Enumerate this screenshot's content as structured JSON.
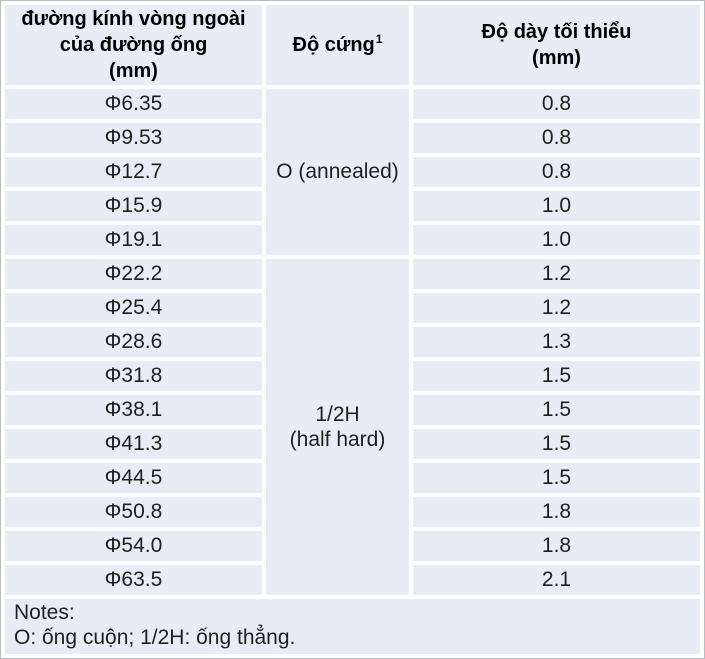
{
  "colors": {
    "cell_bg": "#e9ecf4",
    "separator": "#ffffff",
    "header_text": "#000000",
    "body_text": "#1f1f1f",
    "frame_border": "#b9bcc2"
  },
  "table": {
    "header": {
      "col1": "đường kính vòng ngoài\ncủa đường ống\n(mm)",
      "col2": "Độ cứng",
      "col2_sup": "1",
      "col3": "Độ dày tối thiểu\n(mm)"
    },
    "hardness_groups": [
      {
        "label": "O (annealed)",
        "rows": 5
      },
      {
        "label": "1/2H\n(half hard)",
        "rows": 10
      }
    ],
    "rows": [
      {
        "diameter": "Φ6.35",
        "thickness": "0.8"
      },
      {
        "diameter": "Φ9.53",
        "thickness": "0.8"
      },
      {
        "diameter": "Φ12.7",
        "thickness": "0.8"
      },
      {
        "diameter": "Φ15.9",
        "thickness": "1.0"
      },
      {
        "diameter": "Φ19.1",
        "thickness": "1.0"
      },
      {
        "diameter": "Φ22.2",
        "thickness": "1.2"
      },
      {
        "diameter": "Φ25.4",
        "thickness": "1.2"
      },
      {
        "diameter": "Φ28.6",
        "thickness": "1.3"
      },
      {
        "diameter": "Φ31.8",
        "thickness": "1.5"
      },
      {
        "diameter": "Φ38.1",
        "thickness": "1.5"
      },
      {
        "diameter": "Φ41.3",
        "thickness": "1.5"
      },
      {
        "diameter": "Φ44.5",
        "thickness": "1.5"
      },
      {
        "diameter": "Φ50.8",
        "thickness": "1.8"
      },
      {
        "diameter": "Φ54.0",
        "thickness": "1.8"
      },
      {
        "diameter": "Φ63.5",
        "thickness": "2.1"
      }
    ],
    "notes": {
      "line1": "Notes:",
      "line2": "O: ống cuộn; 1/2H: ống thẳng."
    }
  },
  "chart_data": {
    "type": "table",
    "columns": [
      "đường kính vòng ngoài của đường ống (mm)",
      "Độ cứng¹",
      "Độ dày tối thiểu (mm)"
    ],
    "rows": [
      [
        "Φ6.35",
        "O (annealed)",
        "0.8"
      ],
      [
        "Φ9.53",
        "O (annealed)",
        "0.8"
      ],
      [
        "Φ12.7",
        "O (annealed)",
        "0.8"
      ],
      [
        "Φ15.9",
        "O (annealed)",
        "1.0"
      ],
      [
        "Φ19.1",
        "O (annealed)",
        "1.0"
      ],
      [
        "Φ22.2",
        "1/2H (half hard)",
        "1.2"
      ],
      [
        "Φ25.4",
        "1/2H (half hard)",
        "1.2"
      ],
      [
        "Φ28.6",
        "1/2H (half hard)",
        "1.3"
      ],
      [
        "Φ31.8",
        "1/2H (half hard)",
        "1.5"
      ],
      [
        "Φ38.1",
        "1/2H (half hard)",
        "1.5"
      ],
      [
        "Φ41.3",
        "1/2H (half hard)",
        "1.5"
      ],
      [
        "Φ44.5",
        "1/2H (half hard)",
        "1.5"
      ],
      [
        "Φ50.8",
        "1/2H (half hard)",
        "1.8"
      ],
      [
        "Φ54.0",
        "1/2H (half hard)",
        "1.8"
      ],
      [
        "Φ63.5",
        "1/2H (half hard)",
        "2.1"
      ]
    ],
    "merged_cells": [
      {
        "column": "Độ cứng¹",
        "label": "O (annealed)",
        "row_span": 5
      },
      {
        "column": "Độ cứng¹",
        "label": "1/2H (half hard)",
        "row_span": 10
      }
    ],
    "notes": "Notes: O: ống cuộn; 1/2H: ống thẳng."
  }
}
